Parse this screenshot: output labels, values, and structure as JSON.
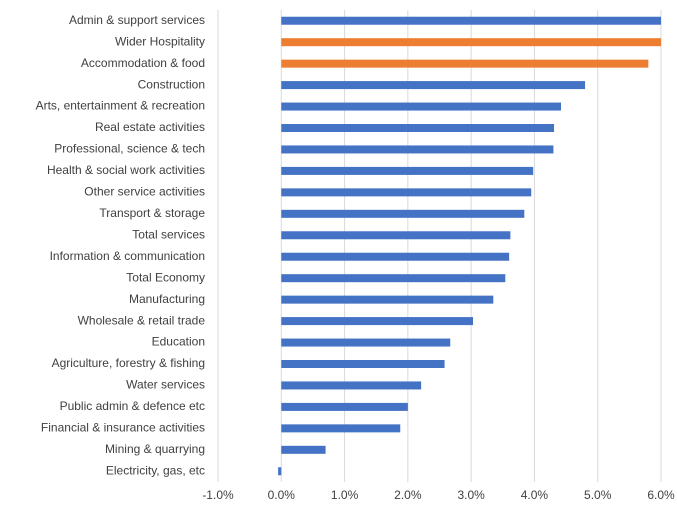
{
  "chart_data": {
    "type": "barh",
    "categories": [
      "Admin & support services",
      "Wider Hospitality",
      "Accommodation & food",
      "Construction",
      "Arts, entertainment & recreation",
      "Real estate activities",
      "Professional, science & tech",
      "Health & social work activities",
      "Other service activities",
      "Transport & storage",
      "Total services",
      "Information & communication",
      "Total Economy",
      "Manufacturing",
      "Wholesale & retail trade",
      "Education",
      "Agriculture, forestry & fishing",
      "Water services",
      "Public admin & defence etc",
      "Financial & insurance activities",
      "Mining & quarrying",
      "Electricity, gas, etc"
    ],
    "values": [
      6.0,
      6.0,
      5.8,
      4.8,
      4.42,
      4.31,
      4.3,
      3.98,
      3.95,
      3.84,
      3.62,
      3.6,
      3.54,
      3.35,
      3.03,
      2.67,
      2.58,
      2.21,
      2.0,
      1.88,
      0.7,
      -0.05
    ],
    "colors": [
      "#4472c4",
      "#ed7d31",
      "#ed7d31",
      "#4472c4",
      "#4472c4",
      "#4472c4",
      "#4472c4",
      "#4472c4",
      "#4472c4",
      "#4472c4",
      "#4472c4",
      "#4472c4",
      "#4472c4",
      "#4472c4",
      "#4472c4",
      "#4472c4",
      "#4472c4",
      "#4472c4",
      "#4472c4",
      "#4472c4",
      "#4472c4",
      "#4472c4"
    ],
    "xlim": [
      -1,
      6
    ],
    "xticks": [
      {
        "value": -1,
        "label": "-1.0%"
      },
      {
        "value": 0,
        "label": "0.0%"
      },
      {
        "value": 1,
        "label": "1.0%"
      },
      {
        "value": 2,
        "label": "2.0%"
      },
      {
        "value": 3,
        "label": "3.0%"
      },
      {
        "value": 4,
        "label": "4.0%"
      },
      {
        "value": 5,
        "label": "5.0%"
      },
      {
        "value": 6,
        "label": "6.0%"
      }
    ],
    "grid": true
  }
}
